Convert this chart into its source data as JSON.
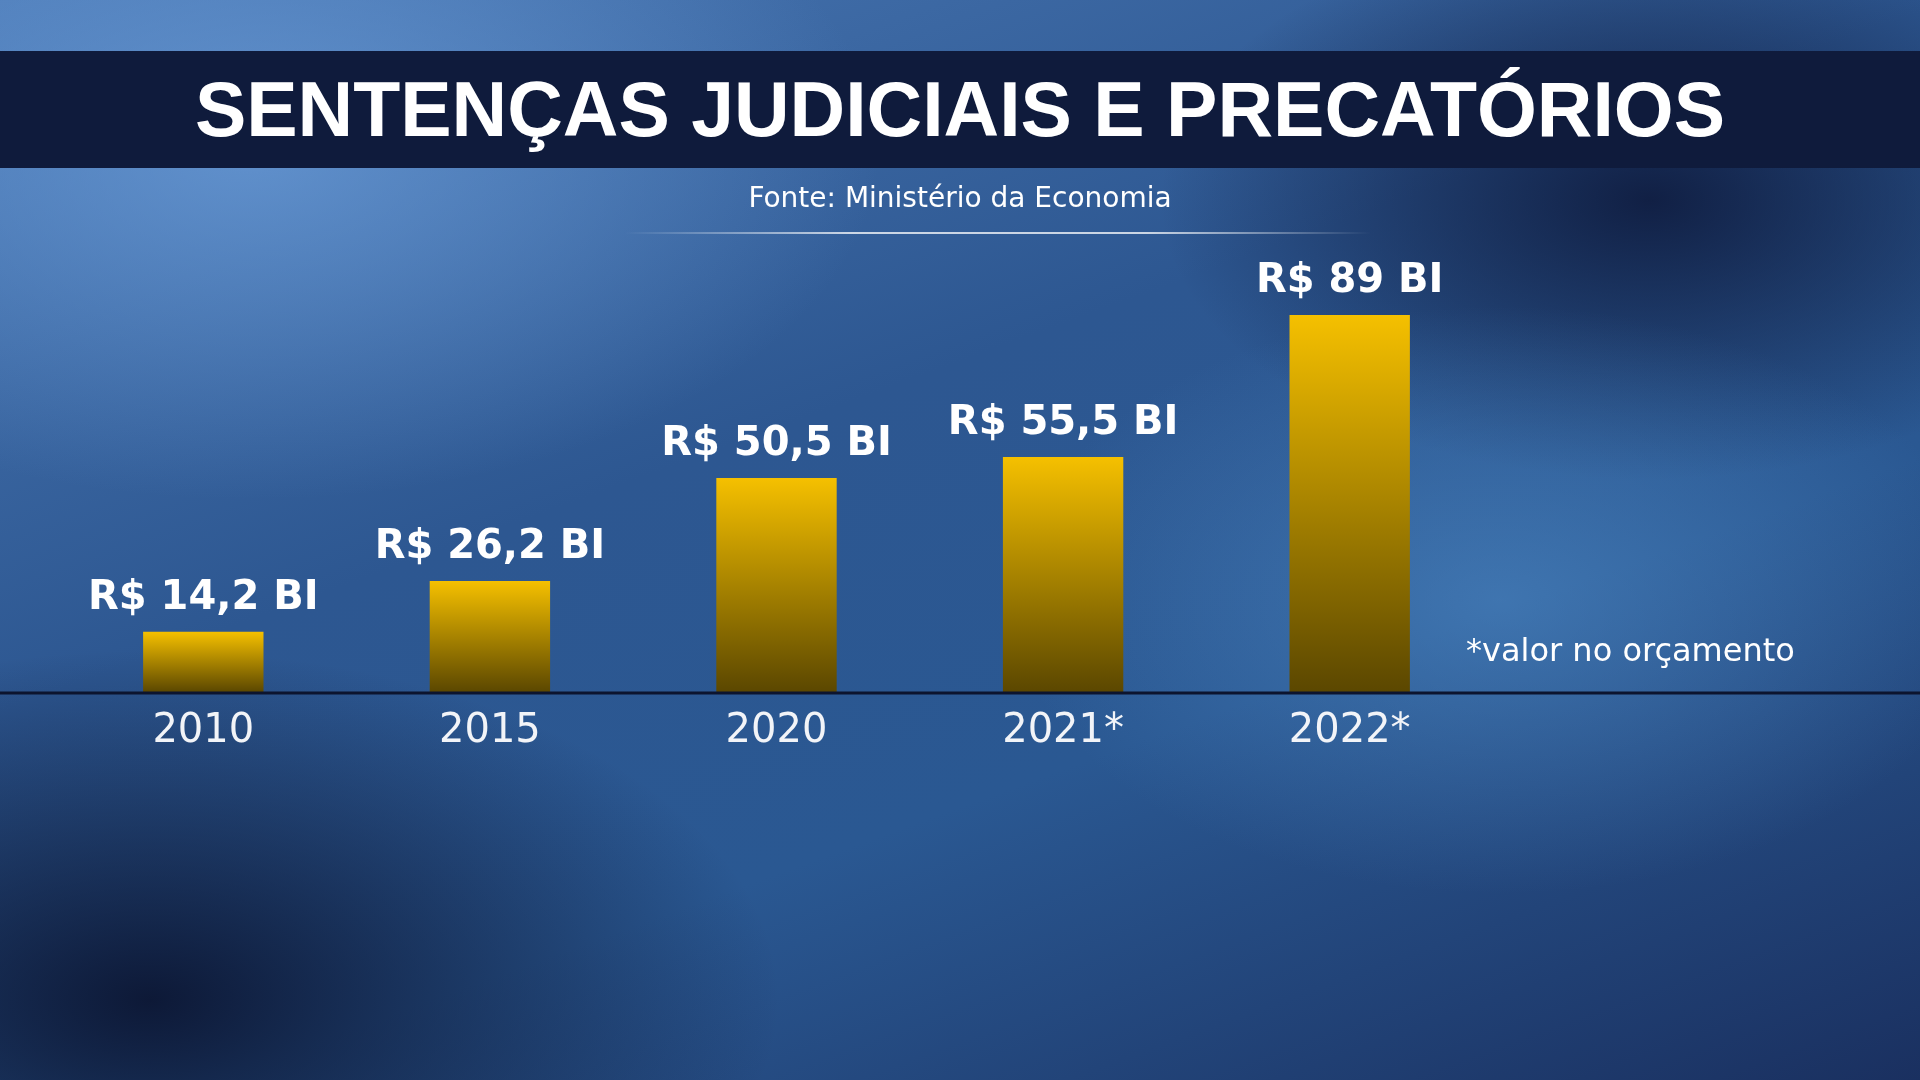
{
  "chart_data": {
    "type": "bar",
    "title": "SENTENÇAS JUDICIAIS E PRECATÓRIOS",
    "annotations": [
      "Fonte: Ministério da Economia",
      "*valor no orçamento"
    ],
    "categories": [
      "2010",
      "2015",
      "2020",
      "2021*",
      "2022*"
    ],
    "values": [
      14.2,
      26.2,
      50.5,
      55.5,
      89
    ],
    "value_labels": [
      "R$ 14,2 BI",
      "R$ 26,2 BI",
      "R$ 50,5 BI",
      "R$ 55,5 BI",
      "R$ 89 BI"
    ],
    "color": "#f5c000",
    "tick_labels": "x"
  }
}
